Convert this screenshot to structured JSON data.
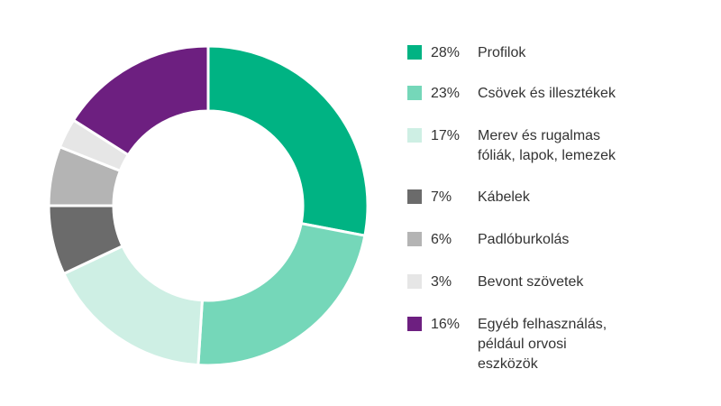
{
  "chart_data": {
    "type": "pie",
    "donut": true,
    "slices": [
      {
        "label": "Profilok",
        "pct_label": "28%",
        "value": 28,
        "color": "#00b383"
      },
      {
        "label": "Csövek és illesztékek",
        "pct_label": "23%",
        "value": 23,
        "color": "#75d7b9"
      },
      {
        "label": "Merev és rugalmas fóliák, lapok, lemezek",
        "label_lines": [
          "Merev és rugalmas",
          "fóliák, lapok, lemezek"
        ],
        "pct_label": "17%",
        "value": 17,
        "color": "#ceefe4"
      },
      {
        "label": "Kábelek",
        "pct_label": "7%",
        "value": 7,
        "color": "#6b6b6b"
      },
      {
        "label": "Padlóburkolás",
        "pct_label": "6%",
        "value": 6,
        "color": "#b4b4b4"
      },
      {
        "label": "Bevont szövetek",
        "pct_label": "3%",
        "value": 3,
        "color": "#e6e6e6"
      },
      {
        "label": "Egyéb felhasználás, például orvosi eszközök",
        "label_lines": [
          "Egyéb felhasználás,",
          "például orvosi",
          "eszközök"
        ],
        "pct_label": "16%",
        "value": 16,
        "color": "#6d1f80"
      }
    ],
    "legend_position": "right"
  }
}
